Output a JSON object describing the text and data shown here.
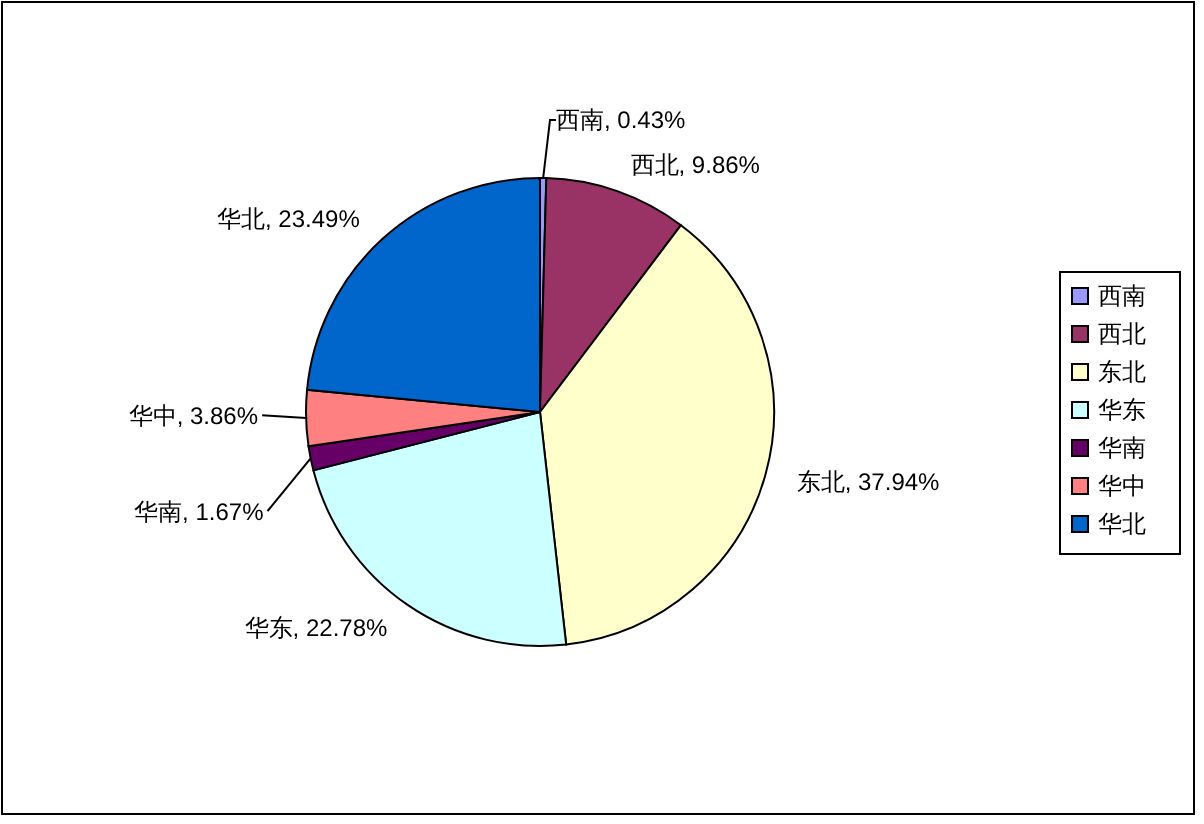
{
  "chart_data": {
    "type": "pie",
    "categories": [
      "西南",
      "西北",
      "东北",
      "华东",
      "华南",
      "华中",
      "华北"
    ],
    "values": [
      0.43,
      9.86,
      37.94,
      22.78,
      1.67,
      3.86,
      23.49
    ],
    "colors": [
      "#9999ff",
      "#993366",
      "#ffffcc",
      "#ccffff",
      "#660066",
      "#ff8080",
      "#0066cc"
    ],
    "value_labels": [
      "西南, 0.43%",
      "西北, 9.86%",
      "东北, 37.94%",
      "华东, 22.78%",
      "华南, 1.67%",
      "华中, 3.86%",
      "华北, 23.49%"
    ],
    "legend": "right"
  }
}
